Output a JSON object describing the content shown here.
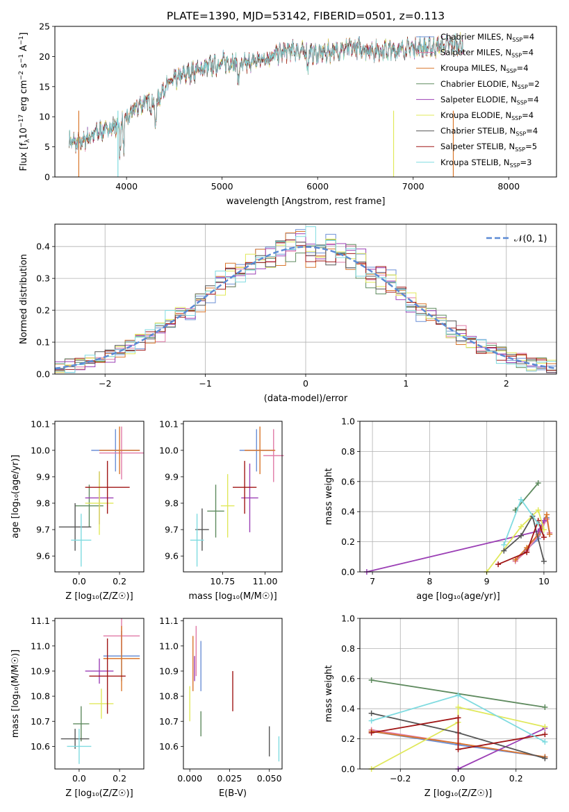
{
  "colors": {
    "Chabrier MILES": "#6b8fd6",
    "Salpeter MILES": "#e07aa6",
    "Kroupa MILES": "#d9762b",
    "Chabrier ELODIE": "#5e8a5e",
    "Salpeter ELODIE": "#9b3fb5",
    "Kroupa ELODIE": "#e0e85a",
    "Chabrier STELIB": "#555555",
    "Salpeter STELIB": "#a01515",
    "Kroupa STELIB": "#7fdbe0"
  },
  "chart_data": [
    {
      "id": "spectrum",
      "type": "line",
      "title": "PLATE=1390, MJD=53142, FIBERID=0501, z=0.113",
      "xlabel": "wavelength [Angstrom, rest frame]",
      "ylabel_main": "Flux [f",
      "ylabel_sub": "λ",
      "ylabel_rest": "10",
      "ylabel_exp": "−17",
      "ylabel_unit": " erg cm",
      "ylabel_unit_exp": "−2",
      "ylabel_s": " s",
      "ylabel_s_exp": "−1",
      "ylabel_a": " A",
      "ylabel_a_exp": "−1",
      "ylabel_end": "]",
      "xlim": [
        3250,
        8500
      ],
      "ylim": [
        0,
        25
      ],
      "xticks": [
        4000,
        5000,
        6000,
        7000,
        8000
      ],
      "yticks": [
        0,
        5,
        10,
        15,
        20,
        25
      ],
      "xrange_data": [
        3400,
        7520
      ],
      "continuum_x": [
        3400,
        3500,
        3600,
        3700,
        3800,
        3900,
        4000,
        4100,
        4200,
        4300,
        4400,
        4500,
        4600,
        4700,
        4800,
        4900,
        5000,
        5100,
        5200,
        5300,
        5400,
        5500,
        5600,
        5700,
        5800,
        5900,
        6000,
        6200,
        6400,
        6600,
        6800,
        7000,
        7200,
        7400,
        7520
      ],
      "continuum_y": [
        6,
        5.5,
        6.5,
        7.5,
        8,
        8.5,
        9.5,
        11.5,
        12.5,
        12,
        15,
        16,
        17,
        17.5,
        18,
        18.5,
        19,
        19,
        18.5,
        19,
        19.5,
        20,
        20.5,
        21,
        21,
        20.5,
        20.5,
        21,
        21.5,
        21,
        21,
        21.5,
        21.5,
        22,
        22
      ],
      "legend": [
        {
          "model": "Chabrier MILES",
          "n": "4"
        },
        {
          "model": "Salpeter MILES",
          "n": "4"
        },
        {
          "model": "Kroupa MILES",
          "n": "4"
        },
        {
          "model": "Chabrier ELODIE",
          "n": "2"
        },
        {
          "model": "Salpeter ELODIE",
          "n": "4"
        },
        {
          "model": "Kroupa ELODIE",
          "n": "4"
        },
        {
          "model": "Chabrier STELIB",
          "n": "4"
        },
        {
          "model": "Salpeter STELIB",
          "n": "5"
        },
        {
          "model": "Kroupa STELIB",
          "n": "3"
        }
      ],
      "legend_nssp_prefix": ", N",
      "legend_nssp_sub": "SSP",
      "legend_nssp_eq": "="
    },
    {
      "id": "residuals",
      "type": "line",
      "xlabel": "(data-model)/error",
      "ylabel": "Normed distribution",
      "xlim": [
        -2.5,
        2.5
      ],
      "ylim": [
        0,
        0.47
      ],
      "xticks": [
        -2,
        -1,
        0,
        1,
        2
      ],
      "yticks": [
        0.0,
        0.1,
        0.2,
        0.3,
        0.4
      ],
      "legend": "𝒩(0, 1)",
      "grid": true
    },
    {
      "id": "age_vs_Z",
      "type": "scatter",
      "xlabel": "Z [log₁₀(Z/Z☉)]",
      "ylabel": "age  [log₁₀(age/yr)]",
      "xlim": [
        -0.12,
        0.32
      ],
      "ylim": [
        9.54,
        10.11
      ],
      "xticks": [
        0.0,
        0.2
      ],
      "yticks": [
        9.6,
        9.7,
        9.8,
        9.9,
        10.0,
        10.1
      ],
      "points": [
        {
          "model": "Chabrier MILES",
          "x": 0.18,
          "y": 10.0,
          "xerr": 0.12,
          "yerr": 0.08
        },
        {
          "model": "Salpeter MILES",
          "x": 0.21,
          "y": 9.99,
          "xerr": 0.11,
          "yerr": 0.1
        },
        {
          "model": "Kroupa MILES",
          "x": 0.2,
          "y": 10.0,
          "xerr": 0.1,
          "yerr": 0.09
        },
        {
          "model": "Chabrier ELODIE",
          "x": 0.05,
          "y": 9.79,
          "xerr": 0.07,
          "yerr": 0.08
        },
        {
          "model": "Salpeter ELODIE",
          "x": 0.1,
          "y": 9.82,
          "xerr": 0.07,
          "yerr": 0.1
        },
        {
          "model": "Kroupa ELODIE",
          "x": 0.1,
          "y": 9.8,
          "xerr": 0.07,
          "yerr": 0.12
        },
        {
          "model": "Chabrier STELIB",
          "x": -0.02,
          "y": 9.71,
          "xerr": 0.08,
          "yerr": 0.09
        },
        {
          "model": "Salpeter STELIB",
          "x": 0.14,
          "y": 9.86,
          "xerr": 0.11,
          "yerr": 0.1
        },
        {
          "model": "Kroupa STELIB",
          "x": 0.01,
          "y": 9.66,
          "xerr": 0.05,
          "yerr": 0.1
        }
      ]
    },
    {
      "id": "age_vs_mass",
      "type": "scatter",
      "xlabel": "mass [log₁₀(M/M☉)]",
      "ylabel": "",
      "xlim": [
        10.52,
        11.1
      ],
      "ylim": [
        9.54,
        10.11
      ],
      "xticks": [
        10.75,
        11.0
      ],
      "xticklabels": [
        "10.75",
        "11.00"
      ],
      "yticks": [
        9.6,
        9.7,
        9.8,
        9.9,
        10.0,
        10.1
      ],
      "points": [
        {
          "model": "Chabrier MILES",
          "x": 10.95,
          "y": 10.0,
          "xerr": 0.1,
          "yerr": 0.08
        },
        {
          "model": "Salpeter MILES",
          "x": 11.05,
          "y": 9.98,
          "xerr": 0.06,
          "yerr": 0.1
        },
        {
          "model": "Kroupa MILES",
          "x": 10.97,
          "y": 10.0,
          "xerr": 0.09,
          "yerr": 0.09
        },
        {
          "model": "Chabrier ELODIE",
          "x": 10.71,
          "y": 9.77,
          "xerr": 0.05,
          "yerr": 0.1
        },
        {
          "model": "Salpeter ELODIE",
          "x": 10.91,
          "y": 9.82,
          "xerr": 0.05,
          "yerr": 0.13
        },
        {
          "model": "Kroupa ELODIE",
          "x": 10.78,
          "y": 9.79,
          "xerr": 0.04,
          "yerr": 0.12
        },
        {
          "model": "Chabrier STELIB",
          "x": 10.63,
          "y": 9.7,
          "xerr": 0.04,
          "yerr": 0.08
        },
        {
          "model": "Salpeter STELIB",
          "x": 10.88,
          "y": 9.86,
          "xerr": 0.07,
          "yerr": 0.1
        },
        {
          "model": "Kroupa STELIB",
          "x": 10.6,
          "y": 9.66,
          "xerr": 0.04,
          "yerr": 0.1
        }
      ]
    },
    {
      "id": "weight_vs_age",
      "type": "line",
      "xlabel": "age  [log₁₀(age/yr)]",
      "ylabel": "mass weight",
      "xlim": [
        6.78,
        10.22
      ],
      "ylim": [
        0,
        1.0
      ],
      "xticks": [
        7,
        8,
        9,
        10
      ],
      "yticks": [
        0.0,
        0.2,
        0.4,
        0.6,
        0.8,
        1.0
      ],
      "grid": true,
      "series": [
        {
          "model": "Chabrier MILES",
          "x": [
            9.5,
            9.7,
            9.9,
            10.05,
            10.1
          ],
          "y": [
            0.08,
            0.15,
            0.22,
            0.36,
            0.25
          ]
        },
        {
          "model": "Salpeter MILES",
          "x": [
            9.5,
            9.7,
            9.9,
            10.05,
            10.1
          ],
          "y": [
            0.07,
            0.14,
            0.24,
            0.35,
            0.26
          ]
        },
        {
          "model": "Kroupa MILES",
          "x": [
            9.5,
            9.7,
            9.9,
            10.05,
            10.1
          ],
          "y": [
            0.08,
            0.16,
            0.25,
            0.38,
            0.25
          ]
        },
        {
          "model": "Chabrier ELODIE",
          "x": [
            9.5,
            9.9
          ],
          "y": [
            0.41,
            0.59
          ]
        },
        {
          "model": "Salpeter ELODIE",
          "x": [
            6.9,
            9.9,
            10.0
          ],
          "y": [
            0.0,
            0.27,
            0.34
          ]
        },
        {
          "model": "Kroupa ELODIE",
          "x": [
            9.0,
            9.6,
            9.9,
            10.0
          ],
          "y": [
            0.0,
            0.3,
            0.41,
            0.28
          ]
        },
        {
          "model": "Chabrier STELIB",
          "x": [
            9.3,
            9.6,
            9.8,
            10.0
          ],
          "y": [
            0.14,
            0.24,
            0.37,
            0.07
          ]
        },
        {
          "model": "Salpeter STELIB",
          "x": [
            9.2,
            9.7,
            9.9,
            10.0
          ],
          "y": [
            0.05,
            0.13,
            0.34,
            0.23
          ]
        },
        {
          "model": "Kroupa STELIB",
          "x": [
            9.3,
            9.6,
            9.9
          ],
          "y": [
            0.18,
            0.48,
            0.32
          ]
        }
      ]
    },
    {
      "id": "mass_vs_Z",
      "type": "scatter",
      "xlabel": "Z [log₁₀(Z/Z☉)]",
      "ylabel": "mass [log₁₀(M/M☉)]",
      "xlim": [
        -0.12,
        0.32
      ],
      "ylim": [
        10.51,
        11.11
      ],
      "xticks": [
        0.0,
        0.2
      ],
      "yticks": [
        10.6,
        10.7,
        10.8,
        10.9,
        11.0,
        11.1
      ],
      "points": [
        {
          "model": "Chabrier MILES",
          "x": 0.21,
          "y": 10.96,
          "xerr": 0.09,
          "yerr": 0.1
        },
        {
          "model": "Salpeter MILES",
          "x": 0.21,
          "y": 11.04,
          "xerr": 0.09,
          "yerr": 0.07
        },
        {
          "model": "Kroupa MILES",
          "x": 0.21,
          "y": 10.95,
          "xerr": 0.09,
          "yerr": 0.13
        },
        {
          "model": "Chabrier ELODIE",
          "x": 0.01,
          "y": 10.69,
          "xerr": 0.04,
          "yerr": 0.07
        },
        {
          "model": "Salpeter ELODIE",
          "x": 0.1,
          "y": 10.9,
          "xerr": 0.07,
          "yerr": 0.05
        },
        {
          "model": "Kroupa ELODIE",
          "x": 0.11,
          "y": 10.77,
          "xerr": 0.06,
          "yerr": 0.06
        },
        {
          "model": "Chabrier STELIB",
          "x": -0.02,
          "y": 10.63,
          "xerr": 0.07,
          "yerr": 0.04
        },
        {
          "model": "Salpeter STELIB",
          "x": 0.14,
          "y": 10.88,
          "xerr": 0.09,
          "yerr": 0.15
        },
        {
          "model": "Kroupa STELIB",
          "x": 0.0,
          "y": 10.6,
          "xerr": 0.06,
          "yerr": 0.07
        }
      ]
    },
    {
      "id": "mass_vs_ebv",
      "type": "scatter",
      "xlabel": "E(B-V)",
      "ylabel": "",
      "xlim": [
        -0.004,
        0.058
      ],
      "ylim": [
        10.51,
        11.11
      ],
      "xticks": [
        0.0,
        0.025,
        0.05
      ],
      "xticklabels": [
        "0.000",
        "0.025",
        "0.050"
      ],
      "yticks": [
        10.6,
        10.7,
        10.8,
        10.9,
        11.0,
        11.1
      ],
      "points": [
        {
          "model": "Chabrier MILES",
          "x": 0.007,
          "y": 10.92,
          "yerr": 0.1
        },
        {
          "model": "Salpeter MILES",
          "x": 0.004,
          "y": 10.98,
          "yerr": 0.1
        },
        {
          "model": "Kroupa MILES",
          "x": 0.002,
          "y": 10.93,
          "yerr": 0.11
        },
        {
          "model": "Chabrier ELODIE",
          "x": 0.007,
          "y": 10.69,
          "yerr": 0.05
        },
        {
          "model": "Salpeter ELODIE",
          "x": 0.003,
          "y": 10.91,
          "yerr": 0.05
        },
        {
          "model": "Kroupa ELODIE",
          "x": 0.0,
          "y": 10.77,
          "yerr": 0.07
        },
        {
          "model": "Chabrier STELIB",
          "x": 0.05,
          "y": 10.62,
          "yerr": 0.06
        },
        {
          "model": "Salpeter STELIB",
          "x": 0.027,
          "y": 10.82,
          "yerr": 0.08
        },
        {
          "model": "Kroupa STELIB",
          "x": 0.056,
          "y": 10.59,
          "yerr": 0.05
        }
      ]
    },
    {
      "id": "weight_vs_Z",
      "type": "line",
      "xlabel": "Z [log₁₀(Z/Z☉)]",
      "ylabel": "mass weight",
      "xlim": [
        -0.34,
        0.34
      ],
      "ylim": [
        0,
        1.0
      ],
      "xticks": [
        -0.2,
        0.0,
        0.2
      ],
      "xticklabels": [
        "−0.2",
        "0.0",
        "0.2"
      ],
      "yticks": [
        0.0,
        0.2,
        0.4,
        0.6,
        0.8,
        1.0
      ],
      "grid": true,
      "series": [
        {
          "model": "Chabrier MILES",
          "x": [
            -0.3,
            0.0,
            0.3
          ],
          "y": [
            0.25,
            0.16,
            0.08
          ]
        },
        {
          "model": "Salpeter MILES",
          "x": [
            -0.3,
            0.0,
            0.3
          ],
          "y": [
            0.26,
            0.17,
            0.08
          ]
        },
        {
          "model": "Kroupa MILES",
          "x": [
            -0.3,
            0.0,
            0.3
          ],
          "y": [
            0.25,
            0.17,
            0.08
          ]
        },
        {
          "model": "Chabrier ELODIE",
          "x": [
            -0.3,
            0.3
          ],
          "y": [
            0.59,
            0.41
          ]
        },
        {
          "model": "Salpeter ELODIE",
          "x": [
            0.0,
            0.3
          ],
          "y": [
            0.0,
            0.27
          ]
        },
        {
          "model": "Kroupa ELODIE",
          "x": [
            -0.3,
            0.0,
            0.0,
            0.3
          ],
          "y": [
            0.0,
            0.31,
            0.41,
            0.28
          ]
        },
        {
          "model": "Chabrier STELIB",
          "x": [
            -0.3,
            0.0,
            0.3
          ],
          "y": [
            0.37,
            0.24,
            0.07
          ]
        },
        {
          "model": "Salpeter STELIB",
          "x": [
            -0.3,
            0.0,
            0.0,
            0.3
          ],
          "y": [
            0.24,
            0.34,
            0.13,
            0.23
          ]
        },
        {
          "model": "Kroupa STELIB",
          "x": [
            -0.3,
            0.0,
            0.3
          ],
          "y": [
            0.32,
            0.49,
            0.18
          ]
        }
      ]
    }
  ]
}
